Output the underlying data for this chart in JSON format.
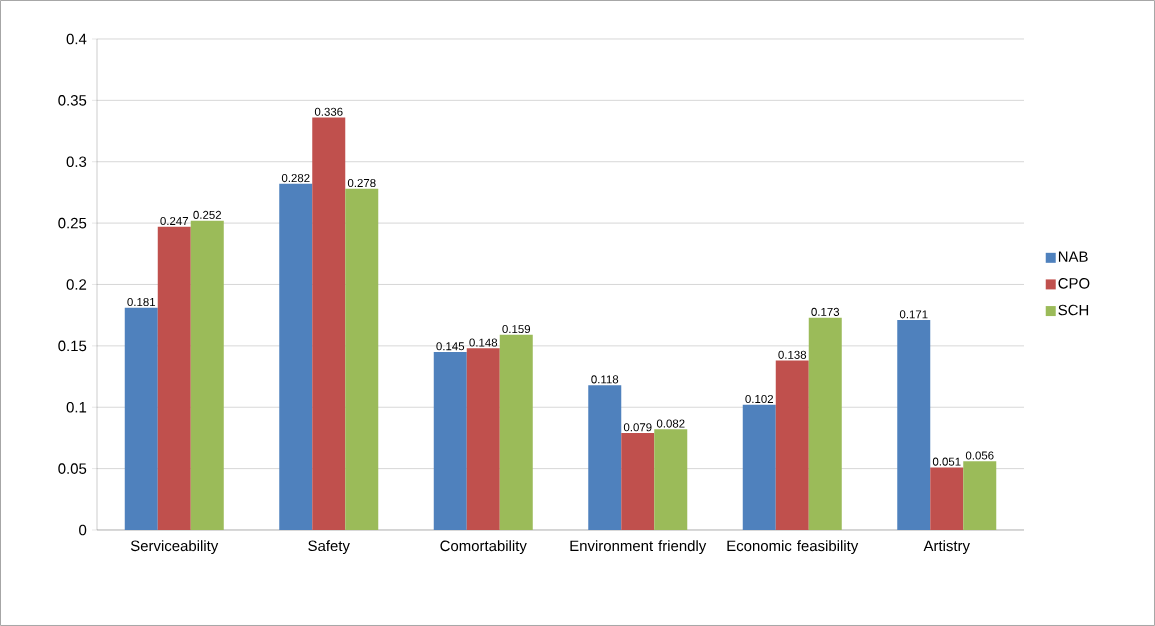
{
  "chart_data": {
    "type": "bar",
    "categories": [
      "Serviceability",
      "Safety",
      "Comortability",
      "Environment friendly",
      "Economic feasibility",
      "Artistry"
    ],
    "series": [
      {
        "name": "NAB",
        "color": "#4f81bd",
        "values": [
          0.181,
          0.282,
          0.145,
          0.118,
          0.102,
          0.171
        ]
      },
      {
        "name": "CPO",
        "color": "#c0504d",
        "values": [
          0.247,
          0.336,
          0.148,
          0.079,
          0.138,
          0.051
        ]
      },
      {
        "name": "SCH",
        "color": "#9bbb59",
        "values": [
          0.252,
          0.278,
          0.159,
          0.082,
          0.173,
          0.056
        ]
      }
    ],
    "ylim": [
      0,
      0.4
    ],
    "yticks": [
      0,
      0.05,
      0.1,
      0.15,
      0.2,
      0.25,
      0.3,
      0.35,
      0.4
    ],
    "grid": "y",
    "legend": "right",
    "data_labels": true
  }
}
